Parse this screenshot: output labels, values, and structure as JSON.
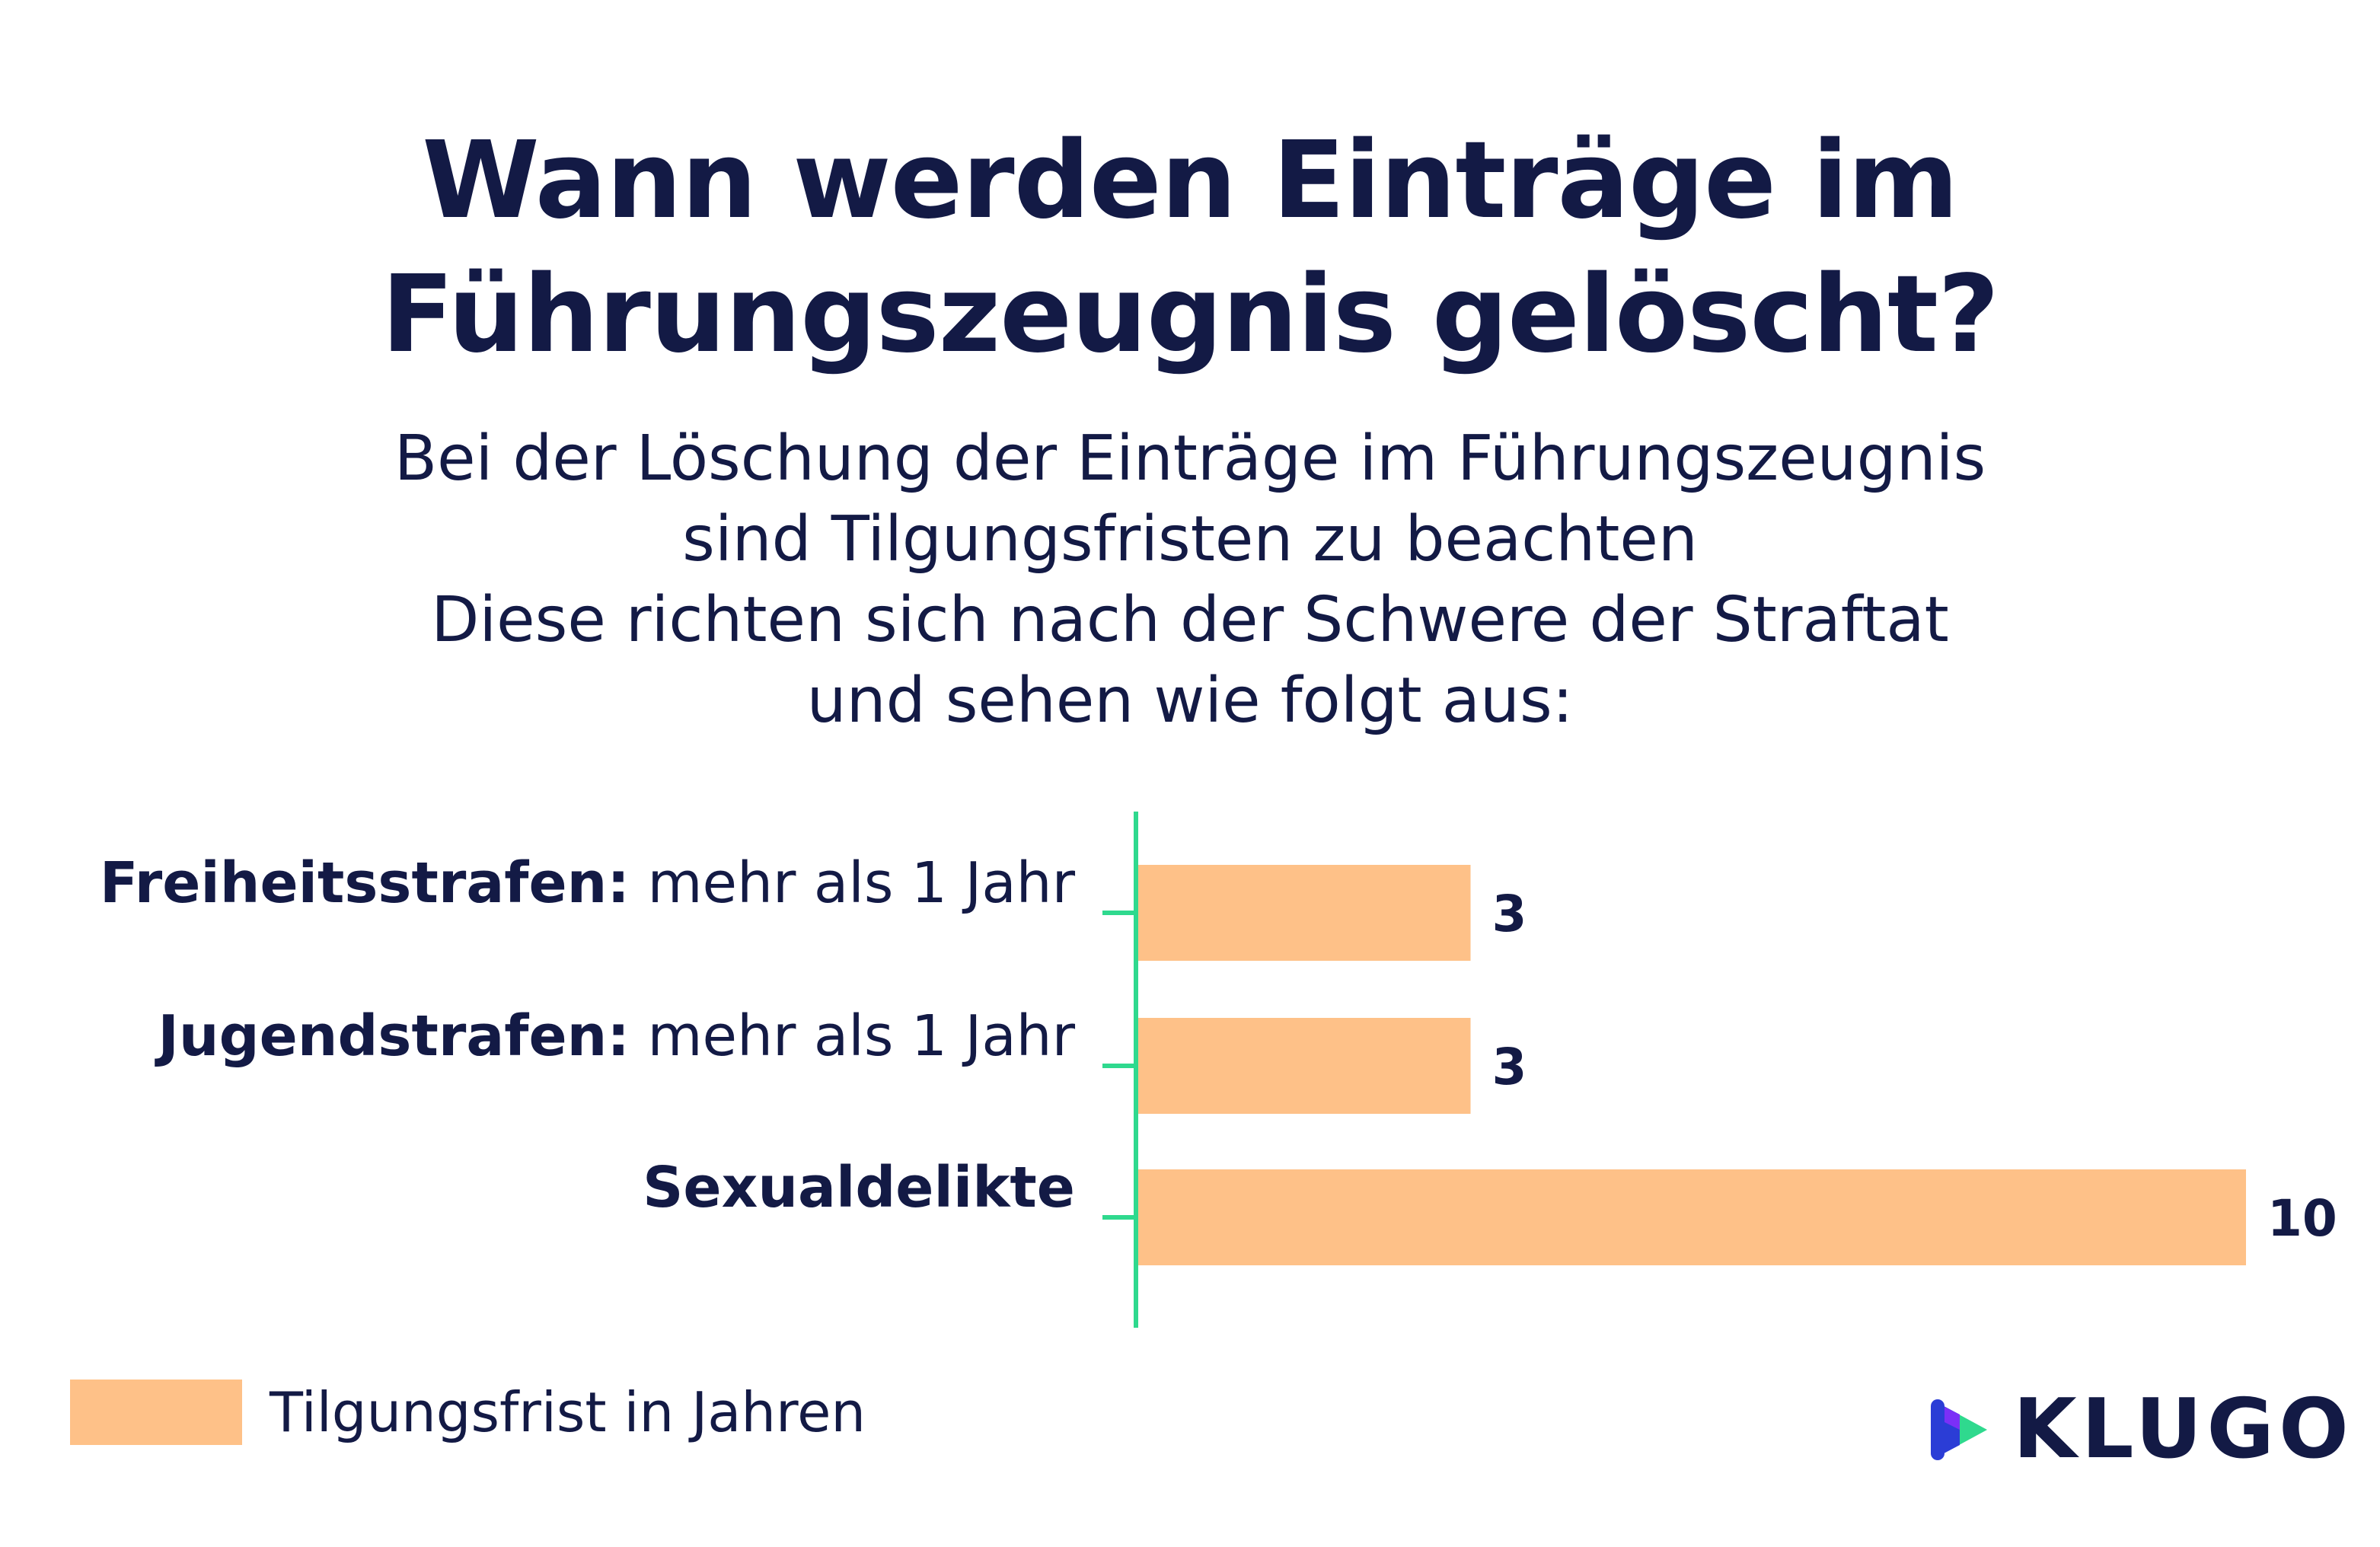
{
  "title": {
    "line1": "Wann werden Einträge im",
    "line2": "Führungszeugnis gelöscht?"
  },
  "subtitle": {
    "line1": "Bei der Löschung der Einträge im Führungszeugnis",
    "line2": "sind Tilgungsfristen zu beachten",
    "line3": "Diese richten sich nach der Schwere der Straftat",
    "line4": "und sehen wie folgt aus:"
  },
  "chart_data": {
    "type": "bar",
    "orientation": "horizontal",
    "categories": [
      {
        "bold": "Freiheitsstrafen:",
        "normal": " mehr als 1 Jahr"
      },
      {
        "bold": "Jugendstrafen:",
        "normal": " mehr als 1 Jahr"
      },
      {
        "bold": "Sexualdelikte",
        "normal": ""
      }
    ],
    "series": [
      {
        "name": "Tilgungsfrist in Jahren",
        "values": [
          3,
          3,
          10
        ]
      }
    ],
    "xlim": [
      0,
      10
    ],
    "grid": false,
    "legend_position": "bottom-left",
    "bar_color": "#fec188",
    "axis_color": "#2fd98e"
  },
  "legend": {
    "label": "Tilgungsfrist in Jahren"
  },
  "logo": {
    "text": "KLUGO",
    "icon": "play-triangle-icon"
  },
  "colors": {
    "text": "#131a45",
    "bar": "#fec188",
    "axis": "#2fd98e",
    "logo_blue": "#2b3dd6",
    "logo_purple": "#7b2ff7",
    "logo_green": "#2fd98e"
  }
}
